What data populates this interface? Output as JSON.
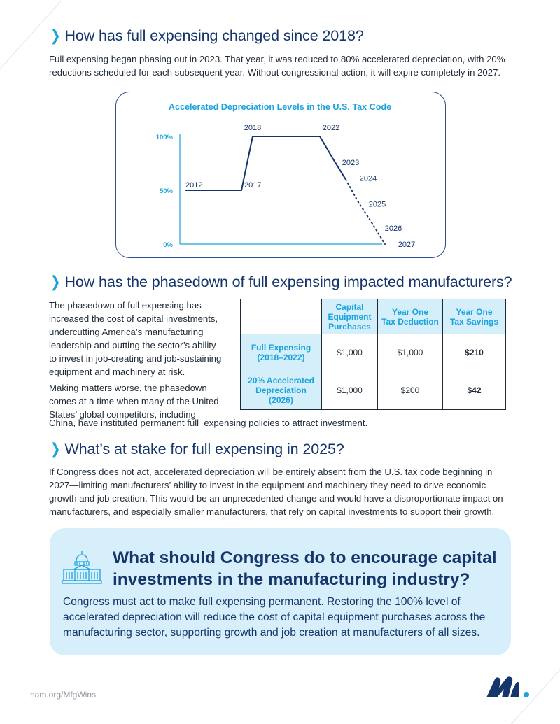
{
  "sections": [
    {
      "title": "How has full expensing changed since 2018?"
    },
    {
      "title": "How has the phasedown of full expensing impacted manufacturers?"
    },
    {
      "title": "What’s at stake for full expensing in 2025?"
    }
  ],
  "intro_lines": [
    "Full expensing began phasing out in 2023. That year, it was reduced to 80% accelerated depreciation, with 20%",
    "reductions scheduled for each subsequent year. Without congressional action, it will expire completely in 2027."
  ],
  "chart_data": {
    "type": "line",
    "title": "Accelerated Depreciation Levels in the U.S. Tax Code",
    "xlabel": "",
    "ylabel": "",
    "ylim": [
      0,
      100
    ],
    "y_ticks": [
      "0%",
      "50%",
      "100%"
    ],
    "y_tick_values": [
      0,
      50,
      100
    ],
    "series": [
      {
        "style": "solid",
        "x": [
          2012,
          2017,
          2018,
          2022,
          2023,
          2024
        ],
        "labels": [
          "2012",
          "2017",
          "2018",
          "2022",
          "2023",
          "2024"
        ],
        "values": [
          50,
          50,
          100,
          100,
          80,
          60
        ]
      },
      {
        "style": "dotted",
        "x": [
          2024,
          2025,
          2026,
          2027
        ],
        "labels": [
          "2024",
          "2025",
          "2026",
          "2027"
        ],
        "values": [
          60,
          40,
          20,
          0
        ]
      }
    ],
    "point_labels": [
      "2012",
      "2017",
      "2018",
      "2022",
      "2023",
      "2024",
      "2025",
      "2026",
      "2027"
    ],
    "grid": false,
    "line_color": "#15366b",
    "axis_color": "#1aa3dc"
  },
  "phasedown_lines": [
    "The phasedown of full expensing has",
    "increased the cost of capital investments,",
    "undercutting America’s manufacturing",
    "leadership and putting the sector’s ability",
    "to invest in job-creating and job-sustaining",
    "equipment and machinery at risk."
  ],
  "worse_lines": [
    "Making matters worse, the phasedown",
    "comes at a time when many of the United",
    "States’ global competitors, including"
  ],
  "worse_last": "China, have instituted permanent full  expensing policies to attract investment.",
  "table": {
    "headers": [
      "Capital Equipment Purchases",
      "Year One Tax Deduction",
      "Year One Tax Savings"
    ],
    "header_lines": [
      [
        "Capital",
        "Equipment",
        "Purchases"
      ],
      [
        "Year One",
        "Tax Deduction"
      ],
      [
        "Year One",
        "Tax Savings"
      ]
    ],
    "rows": [
      {
        "label_lines": [
          "Full Expensing",
          "(2018–2022)"
        ],
        "cells": [
          "$1,000",
          "$1,000",
          "$210"
        ]
      },
      {
        "label_lines": [
          "20% Accelerated",
          "Depreciation",
          "(2026)"
        ],
        "cells": [
          "$1,000",
          "$200",
          "$42"
        ]
      }
    ]
  },
  "stake_lines": [
    "If Congress does not act, accelerated depreciation will be entirely absent from the U.S. tax code beginning in",
    "2027—limiting manufacturers’ ability to invest in the equipment and machinery they need to drive economic",
    "growth and job creation. This would be an unprecedented change and would have a disproportionate impact on",
    "manufacturers, and especially smaller manufacturers, that rely on capital investments to support their growth."
  ],
  "callout": {
    "title_lines": [
      "What should Congress do to encourage capital",
      "investments in the manufacturing industry?"
    ],
    "body_lines": [
      "Congress must act to make full expensing permanent. Restoring the 100% level of",
      "accelerated depreciation will reduce the cost of capital equipment purchases across the",
      "manufacturing sector, supporting growth and job creation at manufacturers of all sizes."
    ]
  },
  "footer": {
    "url": "nam.org/MfgWins"
  },
  "colors": {
    "navy": "#15366b",
    "accent_blue": "#1aa3dc",
    "callout_bg": "#d7effa",
    "table_header_bg": "#d4effa"
  }
}
